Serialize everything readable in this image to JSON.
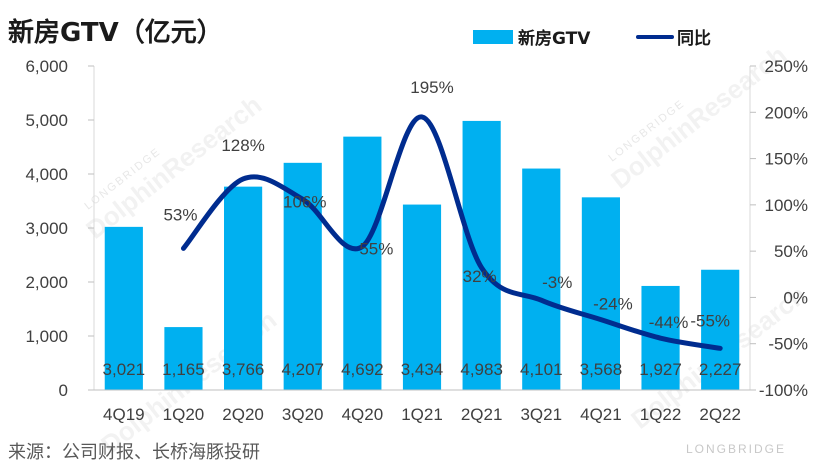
{
  "title": "新房GTV（亿元）",
  "source": "来源：公司财报、长桥海豚投研",
  "brand": "LONGBRIDGE",
  "watermarks": [
    "LONGBRIDGE",
    "DolphinResearch"
  ],
  "chart_data": {
    "type": "bar",
    "categories": [
      "4Q19",
      "1Q20",
      "2Q20",
      "3Q20",
      "4Q20",
      "1Q21",
      "2Q21",
      "3Q21",
      "4Q21",
      "1Q22",
      "2Q22"
    ],
    "series": [
      {
        "name": "新房GTV",
        "type": "bar",
        "axis": "left",
        "color": "#00b0f0",
        "values": [
          3021,
          1165,
          3766,
          4207,
          4692,
          3434,
          4983,
          4101,
          3568,
          1927,
          2227
        ],
        "labels": [
          "3,021",
          "1,165",
          "3,766",
          "4,207",
          "4,692",
          "3,434",
          "4,983",
          "4,101",
          "3,568",
          "1,927",
          "2,227"
        ]
      },
      {
        "name": "同比",
        "type": "line",
        "axis": "right",
        "color": "#002c8f",
        "values": [
          null,
          53,
          128,
          106,
          55,
          195,
          32,
          -3,
          -24,
          -44,
          -55
        ],
        "labels": [
          "",
          "53%",
          "128%",
          "106%",
          "55%",
          "195%",
          "32%",
          "-3%",
          "-24%",
          "-44%",
          "-55%"
        ]
      }
    ],
    "y_left": {
      "min": 0,
      "max": 6000,
      "ticks": [
        0,
        1000,
        2000,
        3000,
        4000,
        5000,
        6000
      ],
      "tick_labels": [
        "0",
        "1,000",
        "2,000",
        "3,000",
        "4,000",
        "5,000",
        "6,000"
      ]
    },
    "y_right": {
      "min": -100,
      "max": 250,
      "ticks": [
        -100,
        -50,
        0,
        50,
        100,
        150,
        200,
        250
      ],
      "tick_labels": [
        "-100%",
        "-50%",
        "0%",
        "50%",
        "100%",
        "150%",
        "200%",
        "250%"
      ]
    },
    "grid": false,
    "legend": "top-right"
  }
}
